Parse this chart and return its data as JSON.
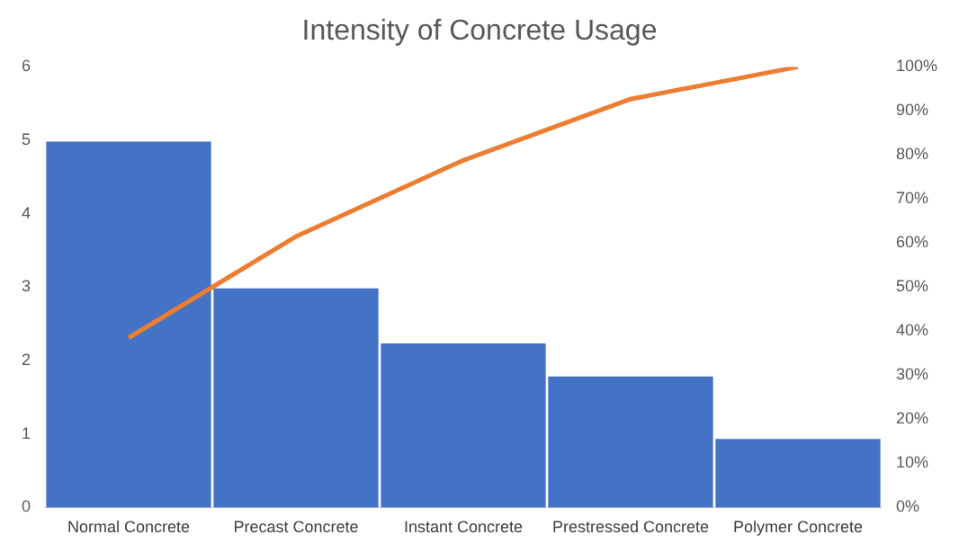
{
  "chart_data": {
    "type": "bar",
    "title": "Intensity of Concrete Usage",
    "categories": [
      "Normal Concrete",
      "Precast Concrete",
      "Instant Concrete",
      "Prestressed Concrete",
      "Polymer Concrete"
    ],
    "series": [
      {
        "color": "#4472c4",
        "values": [
          5,
          3,
          2.25,
          1.8,
          0.95
        ]
      },
      {
        "type": "line",
        "axis": "y2",
        "color": "#ed7d31",
        "values": [
          38.5,
          61.5,
          78.8,
          92.7,
          100
        ]
      }
    ],
    "ylim": [
      0,
      6
    ],
    "yticks": [
      0,
      1,
      2,
      3,
      4,
      5,
      6
    ],
    "y2lim": [
      0,
      100
    ],
    "y2ticks": [
      {
        "value": 0,
        "label": "0%"
      },
      {
        "value": 10,
        "label": "10%"
      },
      {
        "value": 20,
        "label": "20%"
      },
      {
        "value": 30,
        "label": "30%"
      },
      {
        "value": 40,
        "label": "40%"
      },
      {
        "value": 50,
        "label": "50%"
      },
      {
        "value": 60,
        "label": "60%"
      },
      {
        "value": 70,
        "label": "70%"
      },
      {
        "value": 80,
        "label": "80%"
      },
      {
        "value": 90,
        "label": "90%"
      },
      {
        "value": 100,
        "label": "100%"
      }
    ],
    "grid": false,
    "legend": false,
    "marker": "none"
  }
}
